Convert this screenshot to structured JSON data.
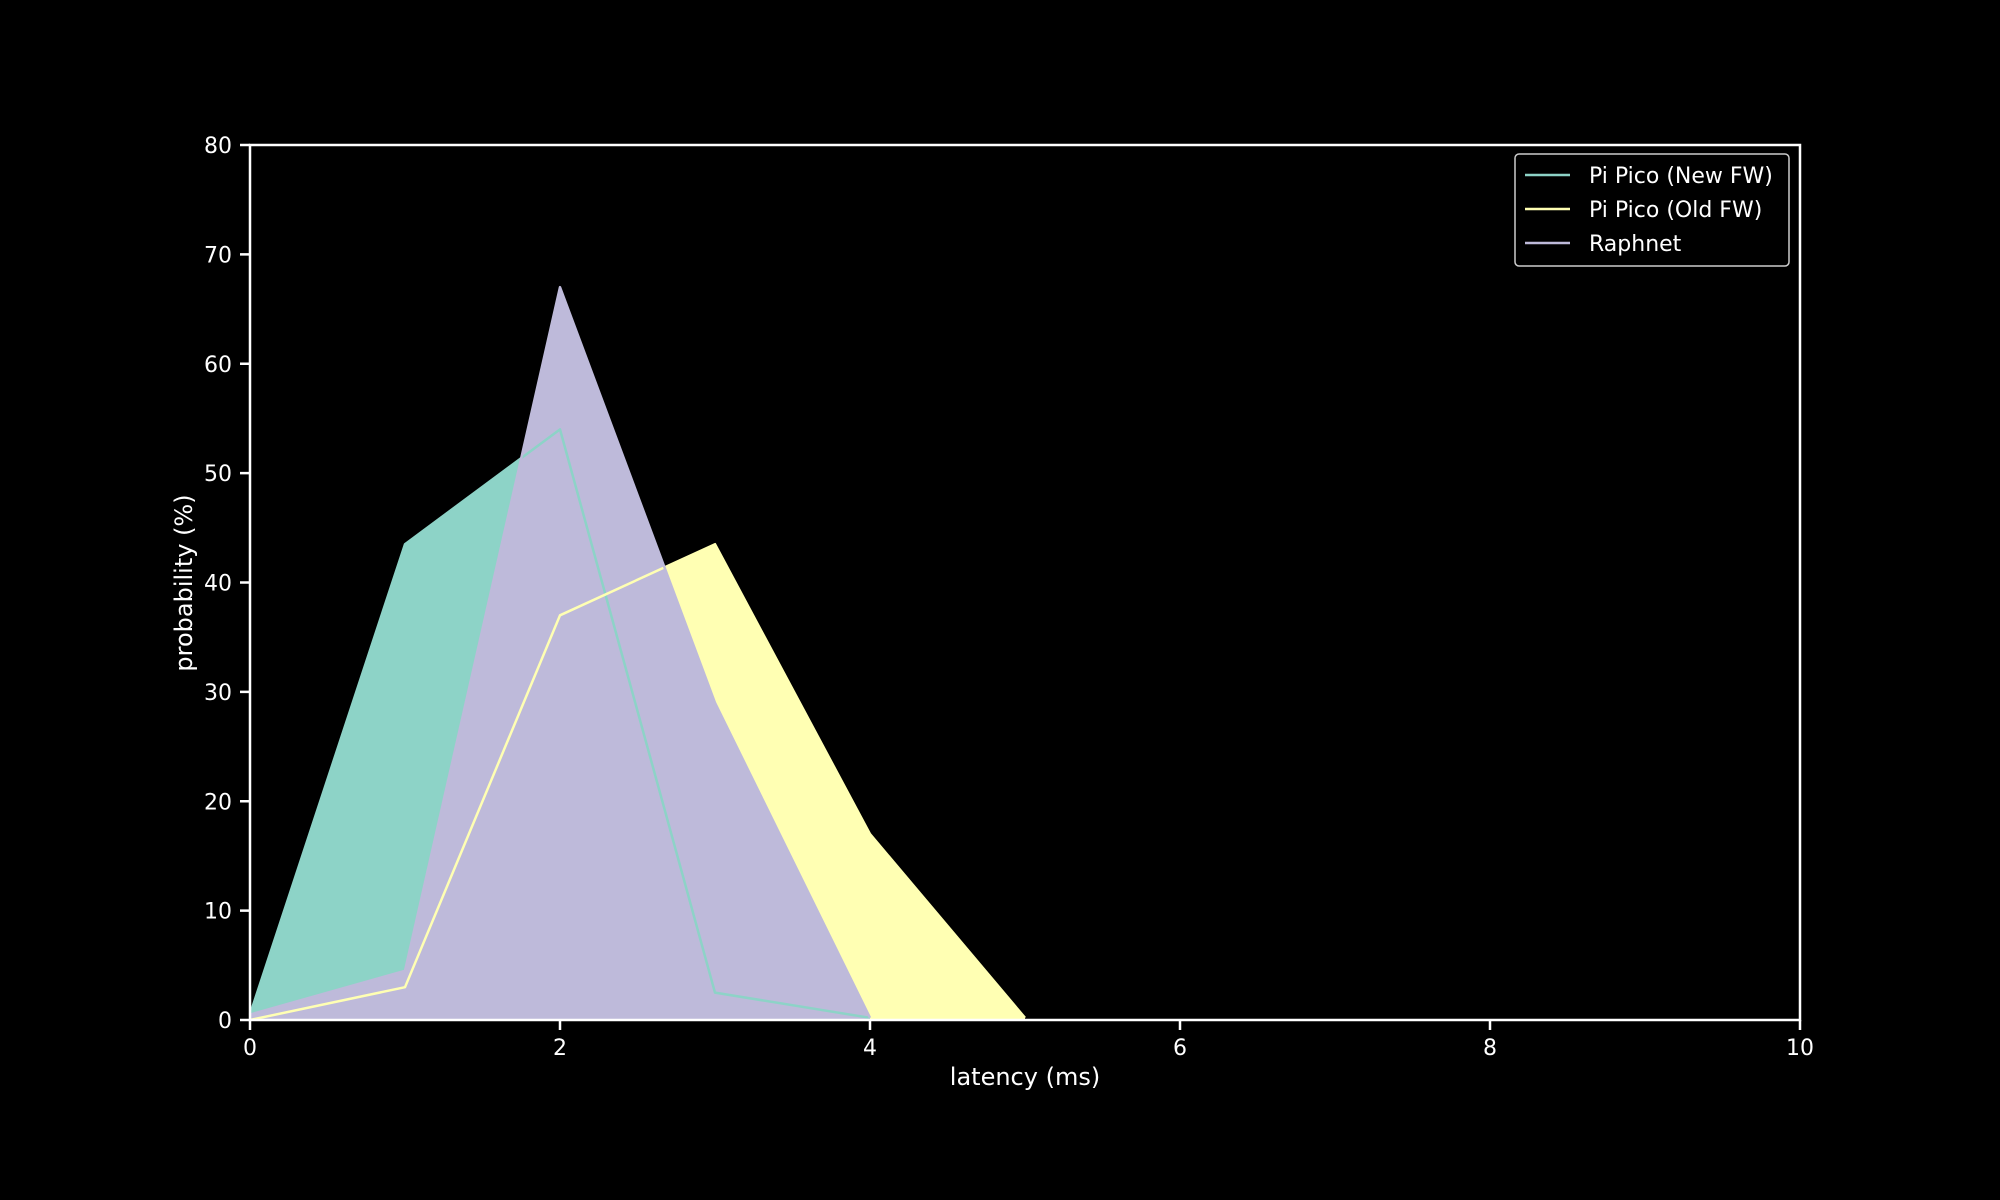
{
  "chart_data": {
    "type": "area",
    "title": "",
    "xlabel": "latency (ms)",
    "ylabel": "probability (%)",
    "xlim": [
      0,
      10
    ],
    "ylim": [
      0,
      80
    ],
    "xticks": [
      "0",
      "2",
      "4",
      "6",
      "8",
      "10"
    ],
    "yticks": [
      "0",
      "10",
      "20",
      "30",
      "40",
      "50",
      "60",
      "70",
      "80"
    ],
    "grid": false,
    "legend_position": "top-right",
    "background": "#000000",
    "series": [
      {
        "name": "Pi Pico (New FW)",
        "color": "#8dd3c7",
        "x": [
          0,
          1,
          2,
          3,
          4
        ],
        "values": [
          0.5,
          43.5,
          54,
          2.5,
          0.2
        ]
      },
      {
        "name": "Pi Pico (Old FW)",
        "color": "#ffffb3",
        "x": [
          0,
          1,
          2,
          3,
          4,
          5
        ],
        "values": [
          0,
          3,
          37,
          43.5,
          17,
          0.2
        ]
      },
      {
        "name": "Raphnet",
        "color": "#bebada",
        "x": [
          0,
          1,
          2,
          3,
          4
        ],
        "values": [
          0.5,
          4.5,
          67,
          29,
          0.2
        ]
      }
    ]
  }
}
